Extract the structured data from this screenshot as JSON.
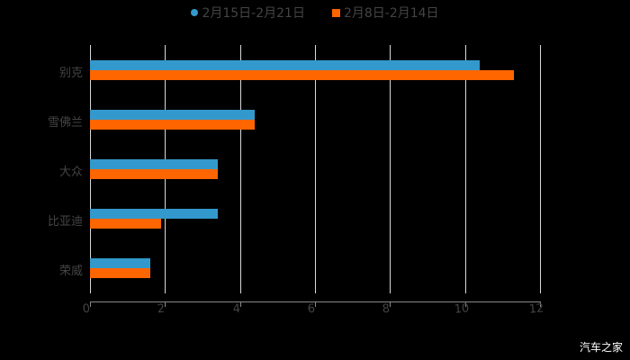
{
  "chart_data": {
    "type": "bar",
    "orientation": "horizontal",
    "title": "",
    "xlabel": "",
    "ylabel": "",
    "categories": [
      "别克",
      "雪佛兰",
      "大众",
      "比亚迪",
      "荣威"
    ],
    "series": [
      {
        "name": "2月15日-2月21日",
        "color": "#3399cc",
        "marker": "circle",
        "values": [
          10.4,
          4.4,
          3.4,
          3.4,
          1.6
        ]
      },
      {
        "name": "2月8日-2月14日",
        "color": "#ff6600",
        "marker": "square",
        "values": [
          11.3,
          4.4,
          3.4,
          1.9,
          1.6
        ]
      }
    ],
    "xlim": [
      0,
      12
    ],
    "xticks": [
      "0",
      "2",
      "4",
      "6",
      "8",
      "10",
      "12"
    ],
    "grid": true,
    "legend_position": "top"
  },
  "legend": {
    "items": [
      {
        "label": "2月15日-2月21日",
        "color": "#3399cc"
      },
      {
        "label": "2月8日-2月14日",
        "color": "#ff6600"
      }
    ]
  },
  "watermark": "汽车之家"
}
